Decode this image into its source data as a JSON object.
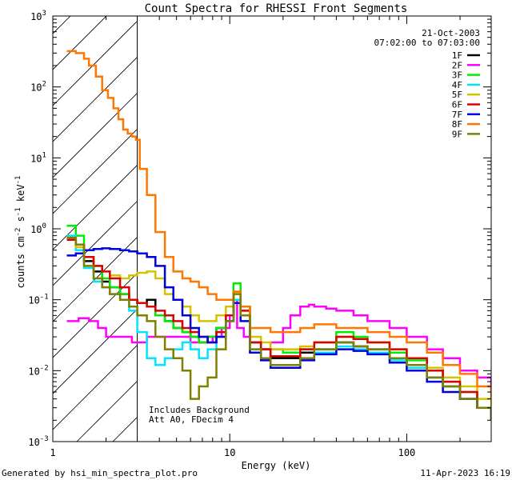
{
  "chart_data": {
    "type": "line",
    "title": "Count Spectra for RHESSI Front Segments",
    "xlabel": "Energy (keV)",
    "ylabel_base": "counts cm",
    "ylabel_exp1": "-2",
    "ylabel_mid": " s",
    "ylabel_exp2": "-1",
    "ylabel_end": " keV",
    "ylabel_exp3": "-1",
    "xscale": "log",
    "yscale": "log",
    "xlim": [
      1,
      300
    ],
    "ylim": [
      0.001,
      1000
    ],
    "x_ticks": [
      {
        "value": 1,
        "label": "1"
      },
      {
        "value": 10,
        "label": "10"
      },
      {
        "value": 100,
        "label": "100"
      }
    ],
    "y_ticks": [
      {
        "value": 0.001,
        "base": "10",
        "exp": "-3"
      },
      {
        "value": 0.01,
        "base": "10",
        "exp": "-2"
      },
      {
        "value": 0.1,
        "base": "10",
        "exp": "-1"
      },
      {
        "value": 1,
        "base": "10",
        "exp": "0"
      },
      {
        "value": 10,
        "base": "10",
        "exp": "1"
      },
      {
        "value": 100,
        "base": "10",
        "exp": "2"
      },
      {
        "value": 1000,
        "base": "10",
        "exp": "3"
      }
    ],
    "date": "21-Oct-2003",
    "time_range": "07:02:00 to 07:03:00",
    "attenuated_region": {
      "x_max": 3
    },
    "annotations": [
      "Includes Background",
      "Att A0, FDecim 4"
    ],
    "legend_position": "top-right",
    "series": [
      {
        "name": "1F",
        "color": "#000000",
        "x": [
          1.2,
          1.35,
          1.5,
          1.7,
          1.9,
          2.1,
          2.4,
          2.7,
          3.0,
          3.4,
          3.8,
          4.3,
          4.8,
          5.4,
          6.0,
          6.7,
          7.5,
          8.4,
          9.5,
          10.5,
          11.5,
          13,
          15,
          17,
          20,
          25,
          30,
          40,
          50,
          60,
          80,
          100,
          130,
          160,
          200,
          250,
          300
        ],
        "values": [
          0.7,
          0.5,
          0.35,
          0.25,
          0.18,
          0.15,
          0.12,
          0.1,
          0.09,
          0.1,
          0.06,
          0.05,
          0.04,
          0.035,
          0.03,
          0.025,
          0.03,
          0.04,
          0.06,
          0.1,
          0.08,
          0.025,
          0.02,
          0.015,
          0.015,
          0.018,
          0.02,
          0.025,
          0.022,
          0.02,
          0.015,
          0.012,
          0.008,
          0.006,
          0.004,
          0.003,
          0.002
        ]
      },
      {
        "name": "2F",
        "color": "#ff00ff",
        "x": [
          1.2,
          1.4,
          1.6,
          1.8,
          2.0,
          2.2,
          2.5,
          2.8,
          3.0,
          3.4,
          4,
          5,
          6,
          7,
          8,
          9,
          10,
          10.5,
          11,
          12,
          13,
          15,
          17,
          20,
          22,
          25,
          28,
          30,
          35,
          40,
          50,
          60,
          80,
          100,
          130,
          160,
          200,
          250,
          300
        ],
        "values": [
          0.05,
          0.055,
          0.05,
          0.04,
          0.03,
          0.03,
          0.03,
          0.025,
          0.025,
          0.03,
          0.03,
          0.03,
          0.025,
          0.025,
          0.03,
          0.04,
          0.06,
          0.1,
          0.04,
          0.03,
          0.025,
          0.02,
          0.025,
          0.04,
          0.06,
          0.08,
          0.085,
          0.08,
          0.075,
          0.07,
          0.06,
          0.05,
          0.04,
          0.03,
          0.02,
          0.015,
          0.01,
          0.008,
          0.005
        ]
      },
      {
        "name": "3F",
        "color": "#00ee00",
        "x": [
          1.2,
          1.35,
          1.5,
          1.7,
          1.9,
          2.1,
          2.4,
          2.7,
          3.0,
          3.4,
          3.8,
          4.3,
          4.8,
          5.4,
          6.0,
          6.7,
          7.5,
          8.4,
          9.5,
          10.5,
          11.5,
          13,
          15,
          17,
          20,
          25,
          30,
          40,
          50,
          60,
          80,
          100,
          130,
          160,
          200,
          250,
          300
        ],
        "values": [
          1.1,
          0.8,
          0.4,
          0.3,
          0.2,
          0.15,
          0.12,
          0.1,
          0.09,
          0.08,
          0.06,
          0.05,
          0.04,
          0.035,
          0.03,
          0.025,
          0.03,
          0.04,
          0.06,
          0.17,
          0.08,
          0.025,
          0.02,
          0.02,
          0.018,
          0.02,
          0.025,
          0.035,
          0.03,
          0.025,
          0.018,
          0.014,
          0.01,
          0.007,
          0.005,
          0.003,
          0.002
        ]
      },
      {
        "name": "4F",
        "color": "#00e5ff",
        "x": [
          1.2,
          1.35,
          1.5,
          1.7,
          1.9,
          2.1,
          2.4,
          2.7,
          3.0,
          3.4,
          3.8,
          4.3,
          4.8,
          5.4,
          6.0,
          6.7,
          7.5,
          8.4,
          9.5,
          10.5,
          11.5,
          13,
          15,
          17,
          20,
          25,
          30,
          40,
          50,
          60,
          80,
          100,
          130,
          160,
          200,
          250,
          300
        ],
        "values": [
          0.8,
          0.5,
          0.28,
          0.18,
          0.15,
          0.12,
          0.1,
          0.07,
          0.035,
          0.015,
          0.012,
          0.015,
          0.02,
          0.025,
          0.02,
          0.015,
          0.02,
          0.03,
          0.05,
          0.1,
          0.06,
          0.02,
          0.015,
          0.012,
          0.012,
          0.015,
          0.018,
          0.022,
          0.02,
          0.018,
          0.014,
          0.011,
          0.008,
          0.006,
          0.004,
          0.003,
          0.002
        ]
      },
      {
        "name": "5F",
        "color": "#d4c400",
        "x": [
          1.2,
          1.35,
          1.5,
          1.7,
          1.9,
          2.1,
          2.4,
          2.7,
          3.0,
          3.4,
          3.8,
          4.3,
          4.8,
          5.4,
          6.0,
          6.7,
          7.5,
          8.4,
          9.5,
          10.5,
          11.5,
          13,
          15,
          17,
          20,
          25,
          30,
          40,
          50,
          60,
          80,
          100,
          130,
          160,
          200,
          250,
          300
        ],
        "values": [
          0.7,
          0.55,
          0.4,
          0.3,
          0.25,
          0.22,
          0.2,
          0.22,
          0.24,
          0.25,
          0.2,
          0.12,
          0.1,
          0.08,
          0.06,
          0.05,
          0.05,
          0.06,
          0.08,
          0.12,
          0.07,
          0.03,
          0.025,
          0.02,
          0.02,
          0.022,
          0.025,
          0.03,
          0.028,
          0.025,
          0.02,
          0.015,
          0.011,
          0.008,
          0.006,
          0.004,
          0.003
        ]
      },
      {
        "name": "6F",
        "color": "#dd0000",
        "x": [
          1.2,
          1.35,
          1.5,
          1.7,
          1.9,
          2.1,
          2.4,
          2.7,
          3.0,
          3.4,
          3.8,
          4.3,
          4.8,
          5.4,
          6.0,
          6.7,
          7.5,
          8.4,
          9.5,
          10.5,
          11.5,
          13,
          15,
          17,
          20,
          25,
          30,
          40,
          50,
          60,
          80,
          100,
          130,
          160,
          200,
          250,
          300
        ],
        "values": [
          0.7,
          0.6,
          0.4,
          0.3,
          0.25,
          0.2,
          0.15,
          0.1,
          0.09,
          0.08,
          0.07,
          0.06,
          0.05,
          0.04,
          0.035,
          0.03,
          0.025,
          0.035,
          0.06,
          0.13,
          0.07,
          0.025,
          0.02,
          0.016,
          0.016,
          0.02,
          0.025,
          0.03,
          0.028,
          0.025,
          0.02,
          0.015,
          0.01,
          0.007,
          0.005,
          0.003,
          0.002
        ]
      },
      {
        "name": "7F",
        "color": "#0000dd",
        "x": [
          1.2,
          1.35,
          1.5,
          1.7,
          1.9,
          2.1,
          2.4,
          2.7,
          3.0,
          3.4,
          3.8,
          4.3,
          4.8,
          5.4,
          6.0,
          6.7,
          7.5,
          8.4,
          9.5,
          10.5,
          11.5,
          13,
          15,
          17,
          20,
          25,
          30,
          40,
          50,
          60,
          80,
          100,
          130,
          160,
          200,
          250,
          300
        ],
        "values": [
          0.42,
          0.45,
          0.5,
          0.52,
          0.53,
          0.52,
          0.5,
          0.48,
          0.45,
          0.4,
          0.3,
          0.15,
          0.1,
          0.06,
          0.04,
          0.03,
          0.025,
          0.03,
          0.05,
          0.09,
          0.05,
          0.018,
          0.014,
          0.011,
          0.011,
          0.014,
          0.017,
          0.02,
          0.019,
          0.017,
          0.013,
          0.01,
          0.007,
          0.005,
          0.004,
          0.003,
          0.002
        ]
      },
      {
        "name": "8F",
        "color": "#ff7700",
        "x": [
          1.2,
          1.35,
          1.5,
          1.6,
          1.75,
          1.9,
          2.05,
          2.2,
          2.35,
          2.5,
          2.65,
          2.8,
          2.95,
          3.1,
          3.4,
          3.8,
          4.3,
          4.8,
          5.4,
          6.0,
          6.7,
          7.5,
          8.4,
          9.5,
          10.5,
          11.5,
          13,
          15,
          17,
          20,
          25,
          30,
          40,
          50,
          60,
          80,
          100,
          130,
          160,
          200,
          250,
          300
        ],
        "values": [
          320,
          300,
          250,
          200,
          140,
          90,
          70,
          50,
          35,
          25,
          22,
          20,
          18,
          7,
          3,
          0.9,
          0.4,
          0.25,
          0.2,
          0.18,
          0.15,
          0.12,
          0.1,
          0.1,
          0.13,
          0.08,
          0.04,
          0.04,
          0.035,
          0.035,
          0.04,
          0.045,
          0.04,
          0.04,
          0.035,
          0.03,
          0.025,
          0.018,
          0.012,
          0.009,
          0.006,
          0.004
        ]
      },
      {
        "name": "9F",
        "color": "#808000",
        "x": [
          1.2,
          1.35,
          1.5,
          1.7,
          1.9,
          2.1,
          2.4,
          2.7,
          3.0,
          3.4,
          3.8,
          4.3,
          4.8,
          5.4,
          6.0,
          6.7,
          7.5,
          8.4,
          9.5,
          10.5,
          11.5,
          13,
          15,
          17,
          20,
          25,
          30,
          40,
          50,
          60,
          80,
          100,
          130,
          160,
          200,
          250,
          300
        ],
        "values": [
          0.75,
          0.6,
          0.3,
          0.2,
          0.15,
          0.12,
          0.1,
          0.08,
          0.06,
          0.05,
          0.03,
          0.02,
          0.015,
          0.01,
          0.004,
          0.006,
          0.008,
          0.02,
          0.05,
          0.12,
          0.06,
          0.02,
          0.015,
          0.012,
          0.012,
          0.015,
          0.02,
          0.025,
          0.022,
          0.02,
          0.015,
          0.012,
          0.008,
          0.006,
          0.004,
          0.003,
          0.002
        ]
      }
    ]
  },
  "footer": {
    "left": "Generated by hsi_min_spectra_plot.pro",
    "right": "11-Apr-2023 16:19"
  }
}
